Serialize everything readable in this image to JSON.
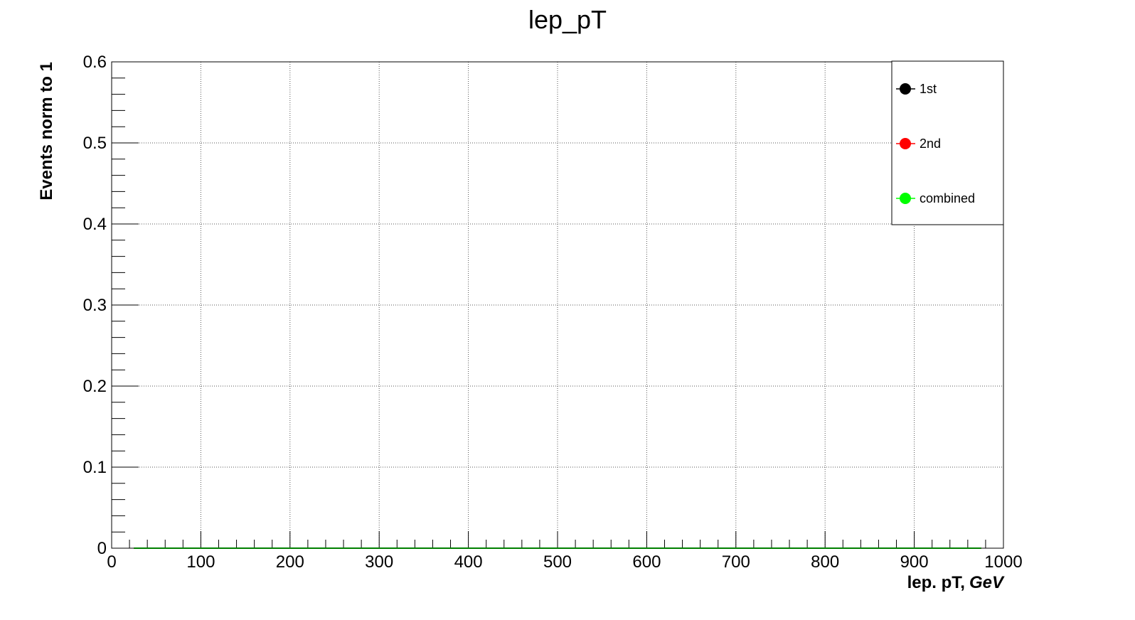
{
  "chart_data": {
    "type": "line",
    "title": "lep_pT",
    "xlabel": "lep. pT,",
    "xlabel_unit": "GeV",
    "ylabel": "Events norm to 1",
    "xlim": [
      0,
      1000
    ],
    "ylim": [
      0,
      0.6
    ],
    "x_ticks": [
      0,
      100,
      200,
      300,
      400,
      500,
      600,
      700,
      800,
      900,
      1000
    ],
    "x_tick_labels": [
      "0",
      "100",
      "200",
      "300",
      "400",
      "500",
      "600",
      "700",
      "800",
      "900",
      "1000"
    ],
    "y_ticks": [
      0,
      0.1,
      0.2,
      0.3,
      0.4,
      0.5,
      0.6
    ],
    "y_tick_labels": [
      "0",
      "0.1",
      "0.2",
      "0.3",
      "0.4",
      "0.5",
      "0.6"
    ],
    "grid": true,
    "legend_position": "top-right",
    "series": [
      {
        "name": "1st",
        "color": "#000000",
        "x": [
          25,
          975
        ],
        "y": [
          0,
          0
        ]
      },
      {
        "name": "2nd",
        "color": "#ff0000",
        "x": [
          25,
          975
        ],
        "y": [
          0,
          0
        ]
      },
      {
        "name": "combined",
        "color": "#00ff00",
        "x": [
          25,
          975
        ],
        "y": [
          0,
          0
        ]
      }
    ]
  }
}
